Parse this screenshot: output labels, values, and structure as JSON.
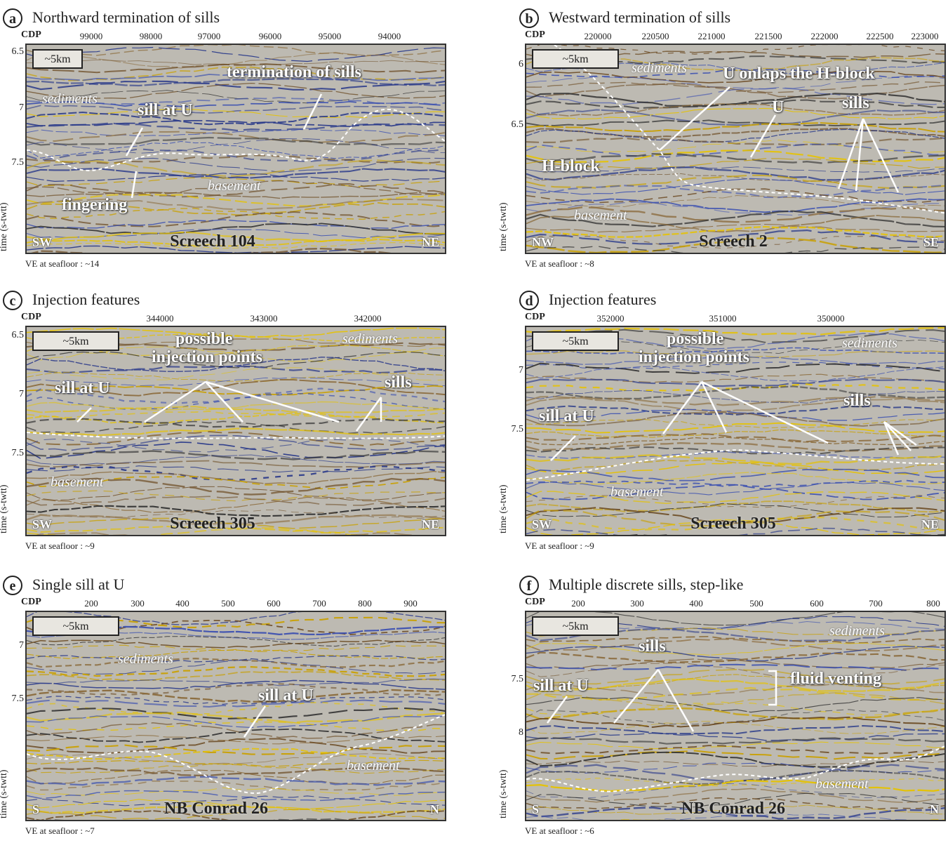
{
  "panels": [
    {
      "letter": "a",
      "title": "Northward termination of sills",
      "cdp_label": "CDP",
      "xticks": [
        "99000",
        "98000",
        "97000",
        "96000",
        "95000",
        "94000"
      ],
      "yticks": [
        "6.5",
        "7",
        "7.5"
      ],
      "ylabel": "time (s-twtt)",
      "scale": "~5km",
      "left": "SW",
      "right": "NE",
      "line": "Screech 104",
      "ve": "VE at seafloor : ~14",
      "labels": {
        "sediments": "sediments",
        "basement": "basement",
        "sill": "sill at U",
        "fingering": "fingering",
        "termination": "termination of sills"
      }
    },
    {
      "letter": "b",
      "title": "Westward termination of sills",
      "cdp_label": "CDP",
      "xticks": [
        "220000",
        "220500",
        "221000",
        "221500",
        "222000",
        "222500",
        "223000"
      ],
      "yticks": [
        "6",
        "6.5"
      ],
      "ylabel": "time (s-twtt)",
      "scale": "~5km",
      "left": "NW",
      "right": "SE",
      "line": "Screech 2",
      "ve": "VE at seafloor : ~8",
      "labels": {
        "sediments": "sediments",
        "basement": "basement",
        "onlap": "U onlaps the H-block",
        "u": "U",
        "sills": "sills",
        "hblock": "H-block"
      }
    },
    {
      "letter": "c",
      "title": "Injection features",
      "cdp_label": "CDP",
      "xticks": [
        "344000",
        "343000",
        "342000"
      ],
      "yticks": [
        "6.5",
        "7",
        "7.5"
      ],
      "ylabel": "time (s-twtt)",
      "scale": "~5km",
      "left": "SW",
      "right": "NE",
      "line": "Screech 305",
      "ve": "VE at seafloor : ~9",
      "labels": {
        "sediments": "sediments",
        "basement": "basement",
        "possible": "possible",
        "injection": "injection points",
        "sill": "sill at U",
        "sills": "sills"
      }
    },
    {
      "letter": "d",
      "title": "Injection features",
      "cdp_label": "CDP",
      "xticks": [
        "352000",
        "351000",
        "350000"
      ],
      "yticks": [
        "7",
        "7.5"
      ],
      "ylabel": "time (s-twtt)",
      "scale": "~5km",
      "left": "SW",
      "right": "NE",
      "line": "Screech 305",
      "ve": "VE at seafloor : ~9",
      "labels": {
        "sediments": "sediments",
        "basement": "basement",
        "possible": "possible",
        "injection": "injection points",
        "sill": "sill at U",
        "sills": "sills"
      }
    },
    {
      "letter": "e",
      "title": "Single sill at U",
      "cdp_label": "CDP",
      "xticks": [
        "200",
        "300",
        "400",
        "500",
        "600",
        "700",
        "800",
        "900"
      ],
      "yticks": [
        "7",
        "7.5"
      ],
      "ylabel": "time (s-twtt)",
      "scale": "~5km",
      "left": "S",
      "right": "N",
      "line": "NB Conrad 26",
      "ve": "VE at seafloor : ~7",
      "labels": {
        "sediments": "sediments",
        "basement": "basement",
        "sill": "sill at U"
      }
    },
    {
      "letter": "f",
      "title": "Multiple discrete sills, step-like",
      "cdp_label": "CDP",
      "xticks": [
        "200",
        "300",
        "400",
        "500",
        "600",
        "700",
        "800"
      ],
      "yticks": [
        "7.5",
        "8"
      ],
      "ylabel": "time (s-twtt)",
      "scale": "~5km",
      "left": "S",
      "right": "N",
      "line": "NB Conrad 26",
      "ve": "VE at seafloor : ~6",
      "labels": {
        "sediments": "sediments",
        "basement": "basement",
        "sill": "sill at U",
        "sills": "sills",
        "venting": "fluid venting"
      }
    }
  ]
}
